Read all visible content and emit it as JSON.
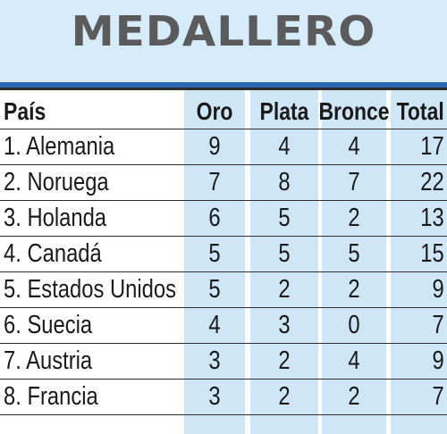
{
  "title": "MEDALLERO",
  "headers": {
    "country": "País",
    "gold": "Oro",
    "silver": "Plata",
    "bronze": "Bronce",
    "total": "Total"
  },
  "rows": [
    {
      "country": "1. Alemania",
      "gold": "9",
      "silver": "4",
      "bronze": "4",
      "total": "17"
    },
    {
      "country": "2. Noruega",
      "gold": "7",
      "silver": "8",
      "bronze": "7",
      "total": "22"
    },
    {
      "country": "3. Holanda",
      "gold": "6",
      "silver": "5",
      "bronze": "2",
      "total": "13"
    },
    {
      "country": "4. Canadá",
      "gold": "5",
      "silver": "5",
      "bronze": "5",
      "total": "15"
    },
    {
      "country": "5. Estados Unidos",
      "gold": "5",
      "silver": "2",
      "bronze": "2",
      "total": "9"
    },
    {
      "country": "6. Suecia",
      "gold": "4",
      "silver": "3",
      "bronze": "0",
      "total": "7"
    },
    {
      "country": "7. Austria",
      "gold": "3",
      "silver": "2",
      "bronze": "4",
      "total": "9"
    },
    {
      "country": "8. Francia",
      "gold": "3",
      "silver": "2",
      "bronze": "2",
      "total": "7"
    }
  ],
  "colors": {
    "title_band": "#d6ecfa",
    "title_text": "#5b5b5b",
    "accent_rule": "#2a69b5",
    "column_fill": "#cfe6f7",
    "text": "#1a1a1a"
  }
}
